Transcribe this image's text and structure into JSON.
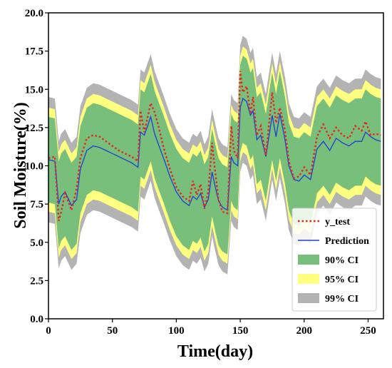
{
  "chart_data": {
    "type": "area",
    "xlabel": "Time(day)",
    "ylabel": "Soil Moisture(%)",
    "xlim": [
      0,
      262
    ],
    "ylim": [
      0.0,
      20.0
    ],
    "xticks": [
      "0",
      "50",
      "100",
      "150",
      "200",
      "250"
    ],
    "yticks": [
      "0.0",
      "2.5",
      "5.0",
      "7.5",
      "10.0",
      "12.5",
      "15.0",
      "17.5",
      "20.0"
    ],
    "grid": false,
    "legend_position": "lower-right",
    "colors": {
      "y_test": "#e8251f",
      "prediction": "#1f3fd6",
      "ci90": "#77bf7a",
      "ci95": "#ffff80",
      "ci99": "#b3b3b3"
    },
    "legend": [
      {
        "key": "y_test",
        "label": "y_test",
        "style": "dotted-line"
      },
      {
        "key": "prediction",
        "label": "Prediction",
        "style": "line"
      },
      {
        "key": "ci90",
        "label": "90% CI",
        "style": "patch"
      },
      {
        "key": "ci95",
        "label": "95% CI",
        "style": "patch"
      },
      {
        "key": "ci99",
        "label": "99% CI",
        "style": "patch"
      }
    ],
    "x": [
      0,
      5,
      8,
      10,
      13,
      18,
      22,
      25,
      30,
      35,
      40,
      45,
      50,
      55,
      60,
      65,
      70,
      72,
      75,
      80,
      83,
      86,
      90,
      95,
      100,
      105,
      110,
      113,
      116,
      119,
      122,
      125,
      128,
      130,
      133,
      136,
      140,
      143,
      145,
      148,
      150,
      152,
      155,
      158,
      160,
      163,
      166,
      170,
      175,
      178,
      181,
      185,
      188,
      192,
      196,
      200,
      205,
      210,
      215,
      220,
      225,
      230,
      235,
      240,
      245,
      248,
      252,
      256,
      260
    ],
    "series": [
      {
        "name": "y_test",
        "values": [
          10.5,
          10.6,
          6.4,
          7.0,
          8.2,
          7.1,
          8.5,
          10.5,
          11.8,
          12.0,
          11.9,
          11.6,
          11.3,
          11.0,
          10.8,
          10.6,
          10.3,
          13.6,
          12.2,
          14.1,
          13.5,
          12.6,
          11.2,
          9.8,
          8.6,
          8.0,
          7.7,
          9.0,
          8.1,
          8.8,
          7.2,
          8.3,
          11.5,
          9.9,
          7.8,
          7.0,
          6.9,
          12.6,
          11.0,
          10.5,
          16.2,
          14.8,
          15.2,
          13.4,
          14.5,
          12.0,
          12.6,
          10.7,
          14.8,
          12.8,
          13.8,
          12.3,
          10.3,
          9.2,
          9.3,
          9.9,
          9.4,
          11.9,
          12.7,
          11.8,
          12.5,
          12.0,
          11.8,
          12.6,
          12.3,
          12.9,
          12.0,
          12.1,
          12.0
        ]
      },
      {
        "name": "Prediction",
        "values": [
          10.4,
          10.3,
          7.5,
          8.0,
          8.3,
          7.4,
          7.8,
          9.8,
          11.0,
          11.3,
          11.2,
          11.0,
          10.8,
          10.6,
          10.4,
          10.2,
          9.9,
          12.2,
          12.0,
          13.2,
          12.1,
          11.4,
          10.5,
          9.3,
          8.3,
          7.7,
          7.4,
          8.0,
          7.8,
          8.2,
          7.3,
          7.8,
          9.6,
          8.8,
          7.7,
          7.3,
          7.1,
          10.6,
          10.2,
          10.0,
          13.8,
          14.4,
          14.2,
          13.3,
          13.6,
          11.7,
          12.0,
          10.6,
          13.3,
          11.9,
          13.4,
          11.7,
          10.0,
          9.1,
          9.0,
          9.4,
          9.1,
          11.1,
          11.6,
          11.0,
          11.8,
          11.5,
          11.3,
          11.6,
          11.6,
          12.2,
          11.9,
          11.7,
          11.6
        ]
      },
      {
        "name": "90% CI",
        "lower": [
          7.6,
          7.5,
          4.6,
          5.1,
          5.4,
          4.5,
          4.9,
          6.9,
          8.1,
          8.4,
          8.3,
          8.1,
          7.9,
          7.7,
          7.5,
          7.3,
          7.0,
          9.3,
          9.1,
          10.3,
          9.2,
          8.5,
          7.6,
          6.4,
          5.4,
          4.8,
          4.5,
          5.1,
          4.9,
          5.3,
          4.4,
          4.9,
          6.7,
          5.9,
          4.8,
          4.4,
          4.2,
          7.7,
          7.3,
          7.1,
          10.9,
          11.5,
          11.3,
          10.4,
          10.7,
          8.8,
          9.1,
          7.7,
          10.4,
          9.0,
          10.5,
          8.8,
          7.1,
          6.2,
          6.1,
          6.5,
          6.2,
          8.2,
          8.7,
          8.1,
          8.9,
          8.6,
          8.4,
          8.7,
          8.7,
          9.3,
          9.0,
          8.8,
          8.7
        ],
        "upper": [
          13.2,
          13.1,
          10.3,
          10.8,
          11.1,
          10.2,
          10.6,
          12.6,
          13.8,
          14.1,
          14.0,
          13.8,
          13.6,
          13.4,
          13.2,
          13.0,
          12.7,
          15.0,
          14.8,
          16.0,
          14.9,
          14.2,
          13.3,
          12.1,
          11.1,
          10.5,
          10.2,
          10.8,
          10.6,
          11.0,
          10.1,
          10.6,
          12.4,
          11.6,
          10.5,
          10.1,
          9.9,
          13.4,
          13.0,
          12.8,
          16.6,
          17.2,
          17.0,
          16.1,
          16.4,
          14.5,
          14.8,
          13.4,
          16.1,
          14.7,
          16.2,
          14.5,
          12.8,
          11.9,
          11.8,
          12.2,
          11.9,
          13.9,
          14.4,
          13.8,
          14.6,
          14.3,
          14.1,
          14.4,
          14.4,
          15.0,
          14.7,
          14.5,
          14.4
        ]
      },
      {
        "name": "95% CI",
        "lower": [
          7.0,
          6.9,
          4.0,
          4.5,
          4.8,
          3.9,
          4.3,
          6.3,
          7.5,
          7.8,
          7.7,
          7.5,
          7.3,
          7.1,
          6.9,
          6.7,
          6.4,
          8.7,
          8.5,
          9.7,
          8.6,
          7.9,
          7.0,
          5.8,
          4.8,
          4.2,
          3.9,
          4.5,
          4.3,
          4.7,
          3.8,
          4.3,
          6.1,
          5.3,
          4.2,
          3.8,
          3.6,
          7.1,
          6.7,
          6.5,
          10.3,
          10.9,
          10.7,
          9.8,
          10.1,
          8.2,
          8.5,
          7.1,
          9.8,
          8.4,
          9.9,
          8.2,
          6.5,
          5.6,
          5.5,
          5.9,
          5.6,
          7.6,
          8.1,
          7.5,
          8.3,
          8.0,
          7.8,
          8.1,
          8.1,
          8.7,
          8.4,
          8.2,
          8.1
        ],
        "upper": [
          13.8,
          13.7,
          10.9,
          11.4,
          11.7,
          10.8,
          11.2,
          13.2,
          14.4,
          14.7,
          14.6,
          14.4,
          14.2,
          14.0,
          13.8,
          13.6,
          13.3,
          15.6,
          15.4,
          16.6,
          15.5,
          14.8,
          13.9,
          12.7,
          11.7,
          11.1,
          10.8,
          11.4,
          11.2,
          11.6,
          10.7,
          11.2,
          13.0,
          12.2,
          11.1,
          10.7,
          10.5,
          14.0,
          13.6,
          13.4,
          17.2,
          17.8,
          17.6,
          16.7,
          17.0,
          15.1,
          15.4,
          14.0,
          16.7,
          15.3,
          16.8,
          15.1,
          13.4,
          12.5,
          12.4,
          12.8,
          12.5,
          14.5,
          15.0,
          14.4,
          15.2,
          14.9,
          14.7,
          15.0,
          15.0,
          15.6,
          15.3,
          15.1,
          15.0
        ]
      },
      {
        "name": "99% CI",
        "lower": [
          6.3,
          6.2,
          3.3,
          3.8,
          4.1,
          3.2,
          3.6,
          5.6,
          6.8,
          7.1,
          7.0,
          6.8,
          6.6,
          6.4,
          6.2,
          6.0,
          5.7,
          8.0,
          7.8,
          9.0,
          7.9,
          7.2,
          6.3,
          5.1,
          4.1,
          3.5,
          3.2,
          3.8,
          3.6,
          4.0,
          3.1,
          3.6,
          5.4,
          4.6,
          3.5,
          3.1,
          2.9,
          6.4,
          6.0,
          5.8,
          9.6,
          10.2,
          10.0,
          9.1,
          9.4,
          7.5,
          7.8,
          6.4,
          9.1,
          7.7,
          9.2,
          7.5,
          5.8,
          4.9,
          4.8,
          5.2,
          4.9,
          6.9,
          7.4,
          6.8,
          7.6,
          7.3,
          7.1,
          7.4,
          7.4,
          8.0,
          7.7,
          7.5,
          7.4
        ],
        "upper": [
          14.5,
          14.4,
          11.6,
          12.1,
          12.4,
          11.5,
          11.9,
          13.9,
          15.1,
          15.4,
          15.3,
          15.1,
          14.9,
          14.7,
          14.5,
          14.3,
          14.0,
          16.3,
          16.1,
          17.3,
          16.2,
          15.5,
          14.6,
          13.4,
          12.4,
          11.8,
          11.5,
          12.1,
          11.9,
          12.3,
          11.4,
          11.9,
          13.7,
          12.9,
          11.8,
          11.4,
          11.2,
          14.7,
          14.3,
          14.1,
          17.9,
          18.5,
          18.3,
          17.4,
          17.7,
          15.8,
          16.1,
          14.7,
          17.4,
          16.0,
          17.5,
          15.8,
          14.1,
          13.2,
          13.1,
          13.5,
          13.2,
          15.2,
          15.7,
          15.1,
          15.9,
          15.6,
          15.4,
          15.7,
          15.7,
          16.3,
          16.0,
          15.8,
          15.7
        ]
      }
    ]
  }
}
